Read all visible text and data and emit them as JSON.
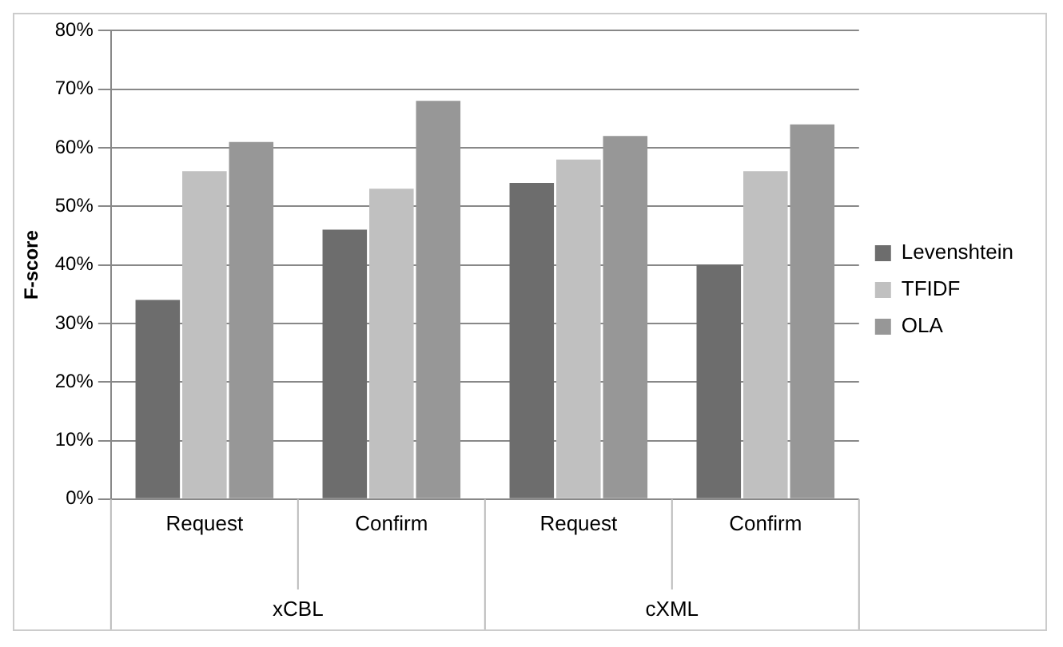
{
  "chart_data": {
    "type": "bar",
    "ylabel": "F-score",
    "categories": [
      "Request",
      "Confirm",
      "Request",
      "Confirm"
    ],
    "annotations": [
      "xCBL",
      "cXML"
    ],
    "series": [
      {
        "name": "Levenshtein",
        "color": "#6d6d6d",
        "values": [
          34,
          46,
          54,
          40
        ]
      },
      {
        "name": "TFIDF",
        "color": "#c0c0c0",
        "values": [
          56,
          53,
          58,
          56
        ]
      },
      {
        "name": "OLA",
        "color": "#979797",
        "values": [
          61,
          68,
          62,
          64
        ]
      }
    ],
    "ylim": [
      0,
      80
    ],
    "yticks": [
      {
        "value": 0,
        "label": "0%"
      },
      {
        "value": 10,
        "label": "10%"
      },
      {
        "value": 20,
        "label": "20%"
      },
      {
        "value": 30,
        "label": "30%"
      },
      {
        "value": 40,
        "label": "40%"
      },
      {
        "value": 50,
        "label": "50%"
      },
      {
        "value": 60,
        "label": "60%"
      },
      {
        "value": 70,
        "label": "70%"
      },
      {
        "value": 80,
        "label": "80%"
      }
    ],
    "grid": "y",
    "legend": "right"
  }
}
